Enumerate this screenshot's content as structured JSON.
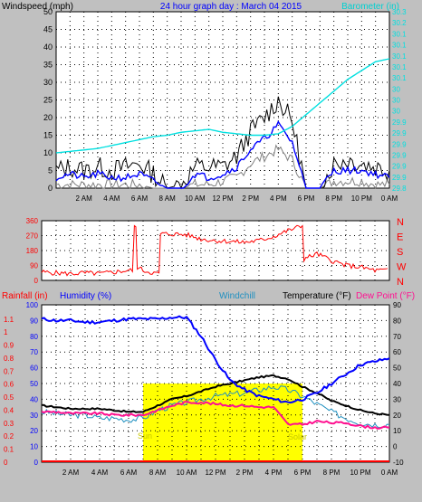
{
  "header": {
    "left_title": "Windspeed (mph)",
    "center_title": "24 hour graph day : March 04 2015",
    "right_title": "Barometer (in)"
  },
  "bottom_header": {
    "rainfall": "Rainfall (in)",
    "humidity": "Humidity (%)",
    "windchill": "Windchill",
    "temperature": "Temperature (°F)",
    "dewpoint": "Dew Point (°F)"
  },
  "annotations": {
    "sun": "Sun",
    "solar": "Solar"
  },
  "colors": {
    "background": "#c0c0c0",
    "plot_bg": "#ffffff",
    "wind_gust": "#000000",
    "wind_avg": "#0000ff",
    "wind_min": "#808080",
    "barometer": "#00e0e0",
    "direction": "#ff0000",
    "humidity": "#0000ff",
    "temperature": "#000000",
    "windchill": "#2090c0",
    "dewpoint": "#ff1090",
    "sun": "#ffff00",
    "title_blue": "#0000ff",
    "rain_red": "#ff0000"
  },
  "x_ticks": [
    "2 AM",
    "4 AM",
    "6 AM",
    "8 AM",
    "10 AM",
    "12 PM",
    "2 PM",
    "4 PM",
    "6 PM",
    "8 PM",
    "10 PM",
    "0 AM"
  ],
  "chart_data": [
    {
      "type": "line",
      "name": "wind-barometer",
      "title": "24 hour graph day : March 04 2015",
      "ylabel": "Windspeed (mph)",
      "y2label": "Barometer (in)",
      "ylim": [
        0,
        50
      ],
      "y2lim": [
        29.8,
        30.4
      ],
      "yticks": [
        0,
        5,
        10,
        15,
        20,
        25,
        30,
        35,
        40,
        45,
        50
      ],
      "y2ticks": [
        "29.8",
        "29.9",
        "29.9",
        "29.9",
        "29.9",
        "29.9",
        "29.9",
        "30",
        "30",
        "30",
        "30.1",
        "30.1",
        "30.1",
        "30.1",
        "30.1",
        "30.2",
        "30.3"
      ],
      "x_hours": [
        0,
        1,
        2,
        3,
        4,
        5,
        6,
        7,
        8,
        9,
        10,
        11,
        12,
        13,
        14,
        15,
        16,
        17,
        18,
        19,
        20,
        21,
        22,
        23,
        24
      ],
      "series": [
        {
          "key": "gust",
          "values": [
            5,
            6,
            5,
            6,
            5,
            6,
            7,
            4,
            0,
            1,
            6,
            6,
            6,
            9,
            16,
            20,
            25,
            19,
            0,
            0,
            7,
            8,
            7,
            6,
            5
          ]
        },
        {
          "key": "avg",
          "values": [
            3,
            4,
            3,
            4,
            3,
            3,
            4,
            2,
            0,
            0,
            4,
            3,
            4,
            6,
            11,
            14,
            18,
            13,
            0,
            0,
            5,
            5,
            5,
            4,
            3
          ]
        },
        {
          "key": "min",
          "values": [
            1,
            1,
            1,
            1,
            1,
            1,
            1,
            0,
            0,
            0,
            1,
            1,
            2,
            3,
            7,
            9,
            11,
            8,
            0,
            0,
            2,
            2,
            2,
            1,
            1
          ]
        },
        {
          "key": "barometer",
          "values": [
            29.92,
            29.925,
            29.93,
            29.935,
            29.945,
            29.955,
            29.965,
            29.975,
            29.98,
            29.99,
            29.995,
            30.0,
            29.99,
            29.985,
            29.98,
            29.98,
            29.985,
            30.01,
            30.05,
            30.09,
            30.13,
            30.17,
            30.2,
            30.23,
            30.24
          ]
        }
      ]
    },
    {
      "type": "line",
      "name": "wind-direction",
      "ylim": [
        0,
        360
      ],
      "yticks": [
        0,
        90,
        180,
        270,
        360
      ],
      "compass_labels": [
        "N",
        "W",
        "S",
        "E",
        "N"
      ],
      "x_hours": [
        0,
        1,
        2,
        3,
        4,
        5,
        6,
        6.4,
        6.6,
        7,
        8,
        8.2,
        9,
        10,
        11,
        12,
        13,
        14,
        15,
        16,
        17,
        18,
        18.1,
        19,
        20,
        21,
        22,
        23,
        24
      ],
      "values": [
        50,
        45,
        40,
        45,
        40,
        50,
        60,
        320,
        80,
        60,
        40,
        280,
        280,
        275,
        250,
        240,
        235,
        230,
        240,
        265,
        300,
        330,
        130,
        160,
        120,
        90,
        80,
        60,
        60
      ]
    },
    {
      "type": "line",
      "name": "humidity-temperature",
      "y1lim": [
        0,
        100
      ],
      "y1ticks": [
        0,
        10,
        20,
        30,
        40,
        50,
        60,
        70,
        80,
        90,
        100
      ],
      "rain_ticks": [
        "0",
        "0.1",
        "0.2",
        "0.3",
        "0.4",
        "0.5",
        "0.6",
        "0.7",
        "0.8",
        "0.9",
        "1",
        "1.1"
      ],
      "y2lim": [
        -10,
        90
      ],
      "y2ticks": [
        -10,
        0,
        10,
        20,
        30,
        40,
        50,
        60,
        70,
        80,
        90
      ],
      "x_hours": [
        0,
        1,
        2,
        3,
        4,
        5,
        6,
        7,
        8,
        9,
        10,
        11,
        12,
        13,
        14,
        15,
        16,
        17,
        18,
        19,
        20,
        21,
        22,
        23,
        24
      ],
      "series": [
        {
          "key": "humidity",
          "values": [
            91,
            90,
            90,
            89,
            89,
            90,
            91,
            91,
            91,
            92,
            92,
            80,
            65,
            52,
            46,
            42,
            40,
            38,
            40,
            44,
            50,
            56,
            62,
            64,
            66
          ]
        },
        {
          "key": "temperature",
          "values": [
            26,
            25,
            24,
            24,
            24,
            23,
            22,
            22,
            26,
            30,
            32,
            35,
            38,
            40,
            42,
            44,
            45,
            43,
            38,
            34,
            29,
            26,
            23,
            21,
            20
          ]
        },
        {
          "key": "windchill",
          "values": [
            22,
            21,
            20,
            20,
            18,
            18,
            17,
            18,
            23,
            26,
            28,
            30,
            32,
            33,
            34,
            36,
            38,
            36,
            32,
            27,
            22,
            18,
            15,
            14,
            14
          ]
        },
        {
          "key": "dewpoint",
          "values": [
            22,
            22,
            21,
            21,
            21,
            20,
            20,
            20,
            23,
            26,
            28,
            28,
            27,
            26,
            26,
            25,
            25,
            14,
            14,
            16,
            15,
            15,
            13,
            12,
            12
          ]
        },
        {
          "key": "rainfall",
          "values": [
            0,
            0,
            0,
            0,
            0,
            0,
            0,
            0,
            0,
            0,
            0,
            0,
            0,
            0,
            0,
            0,
            0,
            0,
            0,
            0,
            0,
            0,
            0,
            0,
            0
          ]
        }
      ],
      "solar": {
        "start_hour": 7.0,
        "end_hour": 18.0,
        "level_percent": 50
      }
    }
  ]
}
